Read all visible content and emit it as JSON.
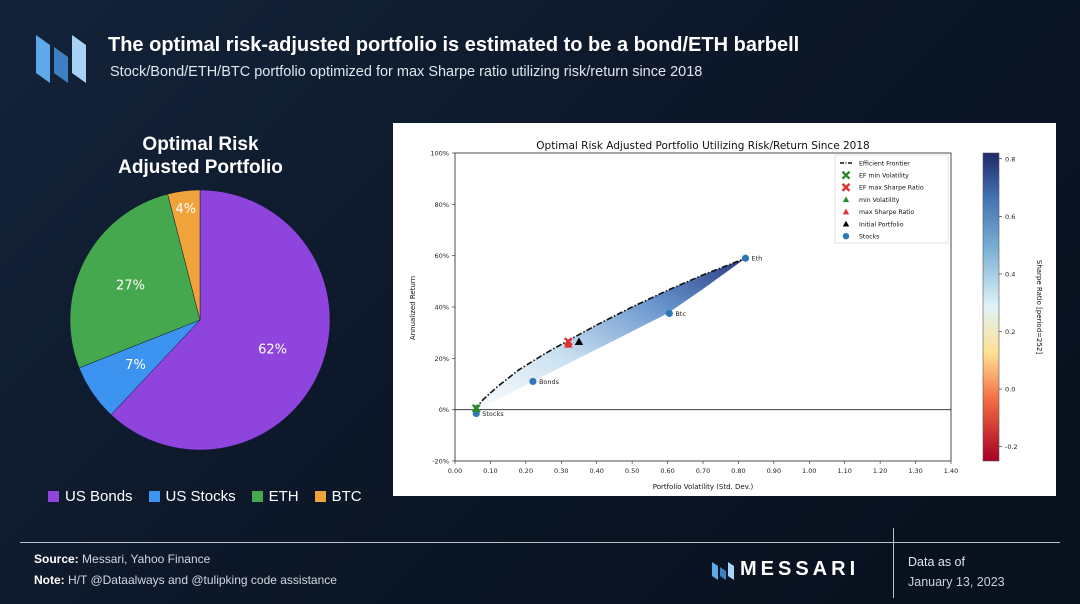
{
  "header": {
    "title": "The optimal risk-adjusted portfolio is estimated to be a bond/ETH barbell",
    "subtitle": "Stock/Bond/ETH/BTC portfolio optimized for max Sharpe ratio utilizing risk/return since 2018"
  },
  "pie": {
    "title_line1": "Optimal Risk",
    "title_line2": "Adjusted Portfolio",
    "legend": [
      {
        "label": "US Bonds",
        "color": "#8e44dd"
      },
      {
        "label": "US Stocks",
        "color": "#3d94f0"
      },
      {
        "label": "ETH",
        "color": "#46a84e"
      },
      {
        "label": "BTC",
        "color": "#f0a33a"
      }
    ]
  },
  "chart_data": [
    {
      "type": "pie",
      "title": "Optimal Risk Adjusted Portfolio",
      "slices": [
        {
          "label": "US Bonds",
          "value": 62,
          "text": "62%",
          "color": "#8e44dd"
        },
        {
          "label": "US Stocks",
          "value": 7,
          "text": "7%",
          "color": "#3d94f0"
        },
        {
          "label": "ETH",
          "value": 27,
          "text": "27%",
          "color": "#46a84e"
        },
        {
          "label": "BTC",
          "value": 4,
          "text": "4%",
          "color": "#f0a33a"
        }
      ]
    },
    {
      "type": "scatter",
      "title": "Optimal Risk Adjusted Portfolio Utilizing Risk/Return Since 2018",
      "xlabel": "Portfolio Volatility (Std. Dev.)",
      "ylabel": "Annualized Return",
      "xlim": [
        0.0,
        1.4
      ],
      "ylim": [
        -0.2,
        1.0
      ],
      "xticks": [
        "0.00",
        "0.10",
        "0.20",
        "0.30",
        "0.40",
        "0.50",
        "0.60",
        "0.70",
        "0.80",
        "0.90",
        "1.00",
        "1.10",
        "1.20",
        "1.30",
        "1.40"
      ],
      "yticks": [
        "-20%",
        "0%",
        "20%",
        "40%",
        "60%",
        "80%",
        "100%"
      ],
      "grid": false,
      "legend_position": "top-right",
      "efficient_frontier": {
        "name": "Efficient Frontier",
        "x": [
          0.055,
          0.08,
          0.12,
          0.18,
          0.25,
          0.32,
          0.4,
          0.5,
          0.6,
          0.7,
          0.82
        ],
        "y": [
          0.0,
          0.04,
          0.09,
          0.155,
          0.215,
          0.27,
          0.33,
          0.4,
          0.465,
          0.525,
          0.59
        ]
      },
      "assets": [
        {
          "name": "Stocks",
          "x": 0.06,
          "y": -0.015
        },
        {
          "name": "Bonds",
          "x": 0.22,
          "y": 0.11
        },
        {
          "name": "Btc",
          "x": 0.605,
          "y": 0.375
        },
        {
          "name": "Eth",
          "x": 0.82,
          "y": 0.59
        }
      ],
      "markers": [
        {
          "name": "EF min Volatility",
          "x": 0.06,
          "y": 0.005,
          "shape": "x",
          "color": "#2c8a2c"
        },
        {
          "name": "EF max Sharpe Ratio",
          "x": 0.32,
          "y": 0.265,
          "shape": "x",
          "color": "#e03030"
        },
        {
          "name": "min Volatility",
          "x": 0.06,
          "y": 0.005,
          "shape": "triangle",
          "color": "#2c8a2c"
        },
        {
          "name": "max Sharpe Ratio",
          "x": 0.32,
          "y": 0.255,
          "shape": "triangle",
          "color": "#e03030"
        },
        {
          "name": "Initial Portfolio",
          "x": 0.35,
          "y": 0.265,
          "shape": "triangle",
          "color": "#000000"
        }
      ],
      "legend": [
        "Efficient Frontier",
        "EF min Volatility",
        "EF max Sharpe Ratio",
        "min Volatility",
        "max Sharpe Ratio",
        "Initial Portfolio",
        "Stocks"
      ],
      "colorbar": {
        "label": "Sharpe Ratio [period=252]",
        "min": -0.25,
        "max": 0.82,
        "ticks": [
          "0.8",
          "0.6",
          "0.4",
          "0.2",
          "0.0",
          "-0.2"
        ]
      }
    }
  ],
  "footer": {
    "source_label": "Source:",
    "source_text": " Messari, Yahoo Finance",
    "note_label": "Note:",
    "note_text": " H/T @Dataalways and @tulipking code assistance",
    "brand": "MESSARI",
    "asof_label": "Data as of",
    "asof_date": "January 13, 2023"
  }
}
